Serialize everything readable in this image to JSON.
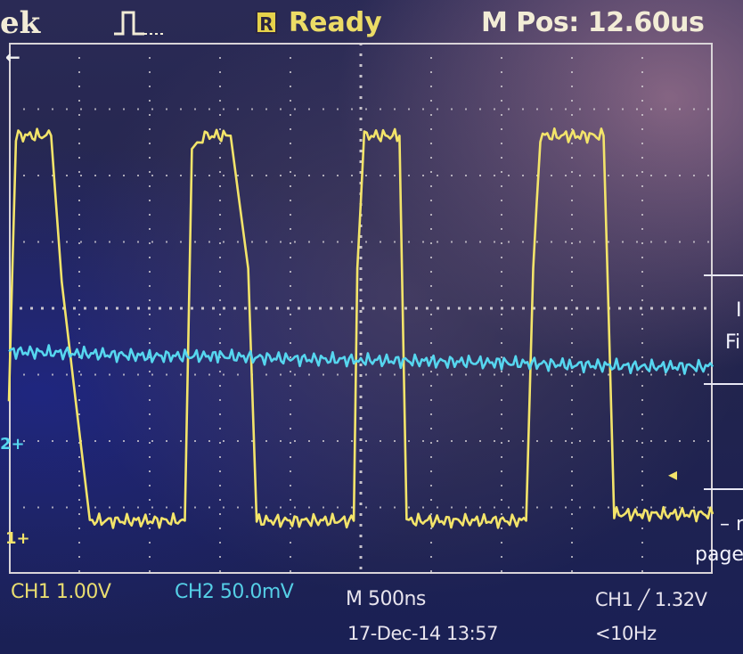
{
  "header": {
    "brand": "ek",
    "acquisition_icon": "pulse-trigger-icon",
    "run_badge": "R",
    "run_status": "Ready",
    "m_pos": "M Pos: 12.60us"
  },
  "markers": {
    "trigger_position": "←",
    "ch2_ground": "2+",
    "ch1_ground": "1+",
    "trigger_level": "◂"
  },
  "footer": {
    "ch1_scale": "CH1  1.00V",
    "ch2_scale": "CH2  50.0mV",
    "timebase": "M 500ns",
    "date_time": "17-Dec-14 13:57",
    "trigger": "CH1 ╱ 1.32V",
    "frequency": "<10Hz"
  },
  "side_menu": [
    "I",
    "Fi",
    "– n",
    "page"
  ],
  "colors": {
    "ch1": "#f3e46a",
    "ch2": "#56d6ef",
    "graticule": "#d9d4d8",
    "ready": "#ecdc66"
  },
  "chart_data": {
    "type": "line",
    "title": "",
    "xlabel": "",
    "ylabel": "",
    "x_unit": "div",
    "y_unit": "div",
    "xlim": [
      0,
      10
    ],
    "ylim": [
      -4,
      4
    ],
    "grid": true,
    "series": [
      {
        "name": "CH1",
        "x": [
          0.0,
          0.1,
          0.6,
          0.75,
          1.15,
          2.5,
          2.6,
          2.75,
          3.15,
          3.4,
          3.52,
          4.9,
          4.95,
          5.05,
          5.55,
          5.65,
          7.35,
          7.45,
          7.55,
          8.45,
          8.6,
          10.0
        ],
        "y": [
          -1.4,
          2.6,
          2.6,
          0.4,
          -3.2,
          -3.2,
          2.4,
          2.6,
          2.6,
          0.6,
          -3.2,
          -3.2,
          0.6,
          2.6,
          2.6,
          -3.2,
          -3.2,
          0.6,
          2.6,
          2.6,
          -3.1,
          -3.1
        ]
      },
      {
        "name": "CH2",
        "x": [
          0.0,
          1.0,
          2.0,
          3.0,
          4.0,
          5.0,
          6.0,
          7.0,
          8.0,
          9.0,
          10.0
        ],
        "y": [
          -0.65,
          -0.68,
          -0.72,
          -0.72,
          -0.76,
          -0.78,
          -0.8,
          -0.82,
          -0.85,
          -0.88,
          -0.88
        ]
      }
    ]
  }
}
